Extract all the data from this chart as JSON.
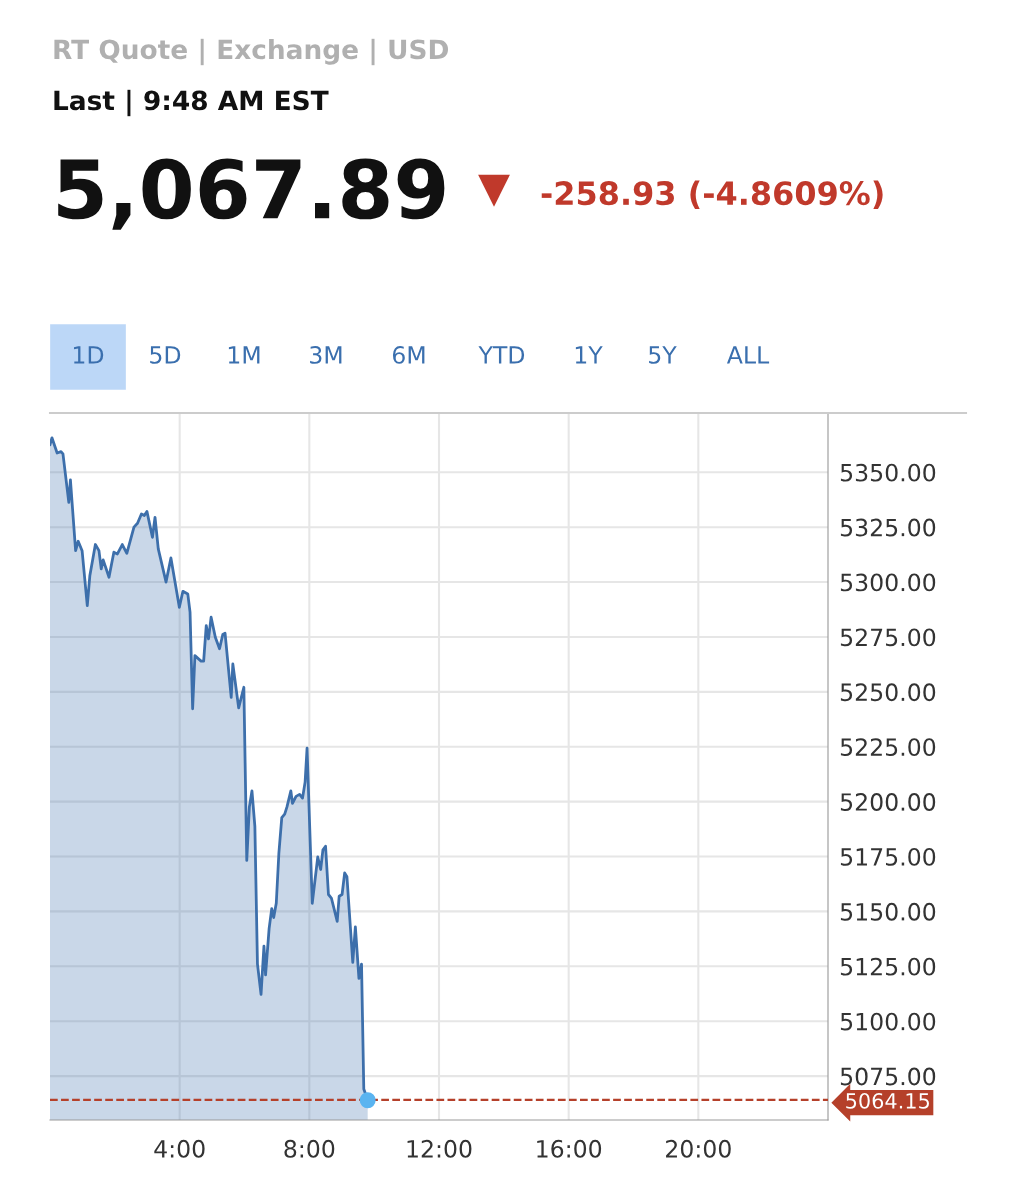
{
  "chart_data": {
    "type": "area",
    "title": "RT Quote | Exchange | USD",
    "subtitle": "Last | 9:48 AM EST",
    "annotations": [
      "5,067.89",
      "▼",
      "-258.93 (-4.8609%)",
      "1D",
      "5D",
      "1M",
      "3M",
      "6M",
      "YTD",
      "1Y",
      "5Y",
      "ALL"
    ],
    "xlim": [
      0,
      24
    ],
    "ylim": [
      5055,
      5377
    ],
    "xticks": [
      {
        "value": 4,
        "label": "4:00"
      },
      {
        "value": 8,
        "label": "8:00"
      },
      {
        "value": 12,
        "label": "12:00"
      },
      {
        "value": 16,
        "label": "16:00"
      },
      {
        "value": 20,
        "label": "20:00"
      }
    ],
    "yticks": [
      {
        "value": 5075,
        "label": "5075.00"
      },
      {
        "value": 5100,
        "label": "5100.00"
      },
      {
        "value": 5125,
        "label": "5125.00"
      },
      {
        "value": 5150,
        "label": "5150.00"
      },
      {
        "value": 5175,
        "label": "5175.00"
      },
      {
        "value": 5200,
        "label": "5200.00"
      },
      {
        "value": 5225,
        "label": "5225.00"
      },
      {
        "value": 5250,
        "label": "5250.00"
      },
      {
        "value": 5275,
        "label": "5275.00"
      },
      {
        "value": 5300,
        "label": "5300.00"
      },
      {
        "value": 5325,
        "label": "5325.00"
      },
      {
        "value": 5350,
        "label": "5350.00"
      }
    ],
    "grid": true,
    "ref_lines": [
      {
        "axis": "y",
        "value": 5064.15,
        "label": "5064.15",
        "color": "#b5402a",
        "line_style": "dashed"
      }
    ],
    "series": [
      {
        "color": "#3d6fab",
        "x": [
          0,
          0.06,
          0.22,
          0.34,
          0.4,
          0.58,
          0.63,
          0.79,
          0.87,
          0.99,
          1.15,
          1.23,
          1.4,
          1.51,
          1.58,
          1.64,
          1.82,
          1.97,
          2.08,
          2.23,
          2.37,
          2.59,
          2.7,
          2.82,
          2.91,
          2.99,
          3.16,
          3.24,
          3.34,
          3.58,
          3.73,
          3.99,
          4.1,
          4.25,
          4.32,
          4.4,
          4.47,
          4.66,
          4.74,
          4.82,
          4.89,
          4.97,
          5.1,
          5.23,
          5.33,
          5.4,
          5.59,
          5.64,
          5.82,
          5.98,
          6.07,
          6.15,
          6.23,
          6.32,
          6.4,
          6.51,
          6.6,
          6.65,
          6.76,
          6.84,
          6.9,
          6.98,
          7.06,
          7.15,
          7.24,
          7.31,
          7.43,
          7.48,
          7.59,
          7.7,
          7.79,
          7.87,
          7.93,
          8.09,
          8.26,
          8.35,
          8.42,
          8.5,
          8.59,
          8.68,
          8.86,
          8.92,
          9.01,
          9.09,
          9.16,
          9.34,
          9.42,
          9.53,
          9.61,
          9.68,
          9.8
        ],
        "values": [
          5362.6,
          5365.7,
          5358.8,
          5359.4,
          5358.4,
          5336.3,
          5346.5,
          5314.3,
          5318.6,
          5314.3,
          5289.3,
          5303,
          5317.1,
          5314.3,
          5306,
          5310.1,
          5302.2,
          5313.6,
          5312.8,
          5317.1,
          5313.1,
          5325,
          5326.8,
          5331,
          5330.3,
          5332.2,
          5320.4,
          5329.5,
          5315.1,
          5300,
          5311,
          5288.5,
          5295.8,
          5294.6,
          5286.3,
          5242.3,
          5266.5,
          5264,
          5264,
          5280.2,
          5274.1,
          5284,
          5274.9,
          5269.6,
          5276.1,
          5276.7,
          5247.5,
          5262.7,
          5242.7,
          5252.1,
          5173.2,
          5197.6,
          5204.9,
          5188.7,
          5126,
          5112.2,
          5134.2,
          5121.1,
          5142.3,
          5151.3,
          5147.2,
          5153.7,
          5176.4,
          5192.7,
          5194.3,
          5197.6,
          5204.9,
          5199.2,
          5202.4,
          5203.3,
          5201.6,
          5209,
          5224.4,
          5153.7,
          5174.8,
          5169.1,
          5178.1,
          5179.7,
          5157.7,
          5156.1,
          5145.5,
          5156.9,
          5157.7,
          5167.5,
          5165.8,
          5126.8,
          5143,
          5119.5,
          5126,
          5069.1,
          5064
        ]
      },
      {
        "type": "scatter",
        "color": "#5ab4f0",
        "marker": "circle",
        "x": [
          9.8
        ],
        "values": [
          5064
        ]
      }
    ]
  }
}
